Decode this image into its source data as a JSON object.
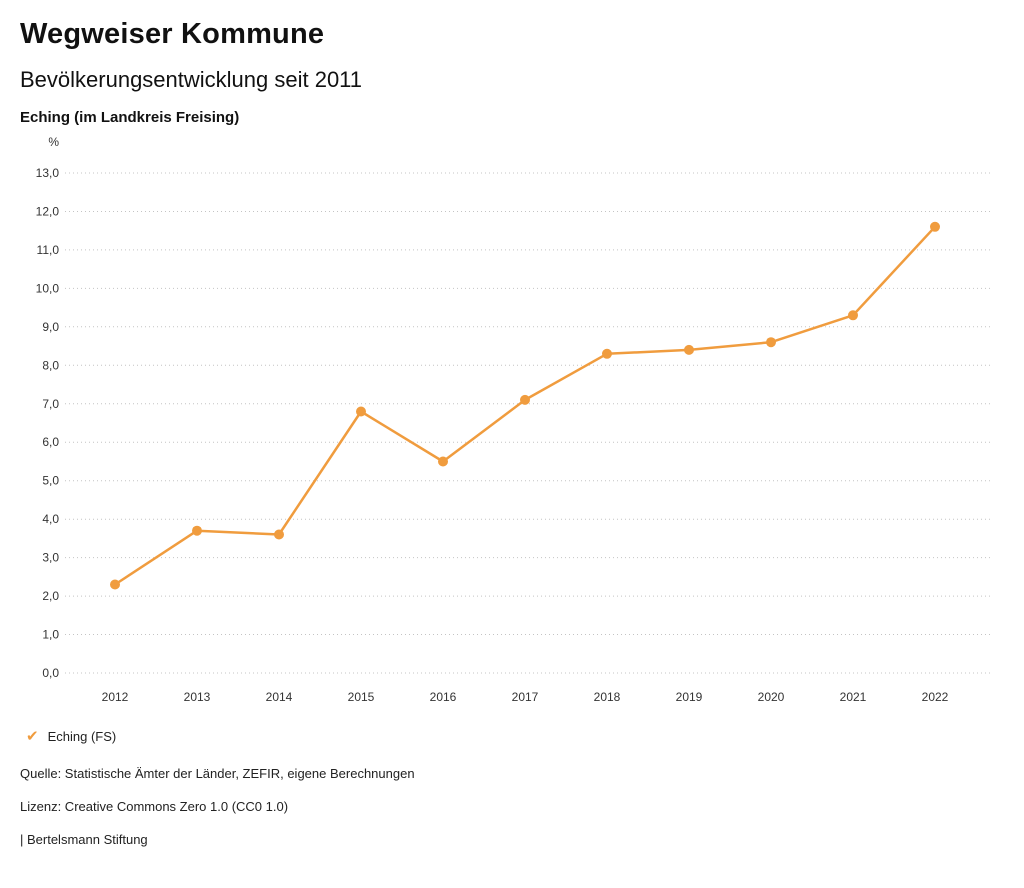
{
  "header": {
    "title": "Wegweiser Kommune",
    "subtitle": "Bevölkerungsentwicklung seit 2011",
    "location": "Eching (im Landkreis Freising)"
  },
  "chart_data": {
    "type": "line",
    "title": "Bevölkerungsentwicklung seit 2011",
    "unit_label": "%",
    "x": [
      "2012",
      "2013",
      "2014",
      "2015",
      "2016",
      "2017",
      "2018",
      "2019",
      "2020",
      "2021",
      "2022"
    ],
    "series": [
      {
        "name": "Eching (FS)",
        "color": "#f09c3e",
        "values": [
          2.3,
          3.7,
          3.6,
          6.8,
          5.5,
          7.1,
          8.3,
          8.4,
          8.6,
          9.3,
          11.6
        ]
      }
    ],
    "ylim": [
      0,
      13
    ],
    "ytick_step": 1,
    "decimal_separator": ",",
    "grid": "horizontal-dotted",
    "grid_color": "#c4c4c4",
    "legend_position": "bottom-left"
  },
  "legend": {
    "check_icon": "✔",
    "label": "Eching (FS)"
  },
  "footer": {
    "source": "Quelle: Statistische Ämter der Länder, ZEFIR, eigene Berechnungen",
    "license": "Lizenz: Creative Commons Zero 1.0 (CC0 1.0)",
    "attribution": "| Bertelsmann Stiftung"
  }
}
